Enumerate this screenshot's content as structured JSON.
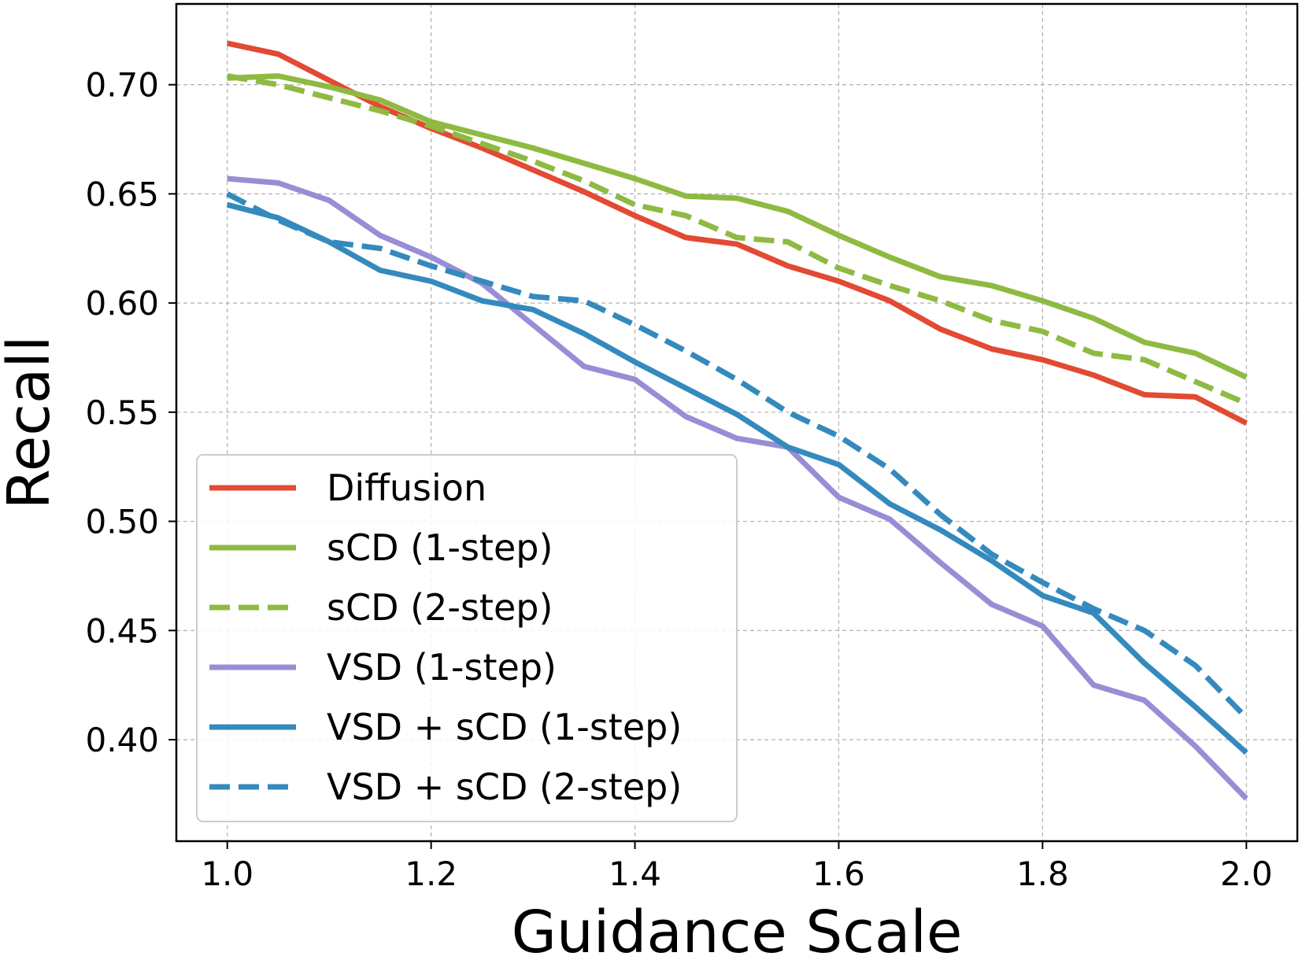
{
  "chart_data": {
    "type": "line",
    "title": "",
    "xlabel": "Guidance Scale",
    "ylabel": "Recall",
    "xlim": [
      0.95,
      2.05
    ],
    "ylim": [
      0.3535,
      0.737
    ],
    "xticks": [
      1.0,
      1.2,
      1.4,
      1.6,
      1.8,
      2.0
    ],
    "xtick_labels": [
      "1.0",
      "1.2",
      "1.4",
      "1.6",
      "1.8",
      "2.0"
    ],
    "yticks": [
      0.4,
      0.45,
      0.5,
      0.55,
      0.6,
      0.65,
      0.7
    ],
    "ytick_labels": [
      "0.40",
      "0.45",
      "0.50",
      "0.55",
      "0.60",
      "0.65",
      "0.70"
    ],
    "grid": true,
    "legend_position": "lower-left",
    "x": [
      1.0,
      1.05,
      1.1,
      1.15,
      1.2,
      1.25,
      1.3,
      1.35,
      1.4,
      1.45,
      1.5,
      1.55,
      1.6,
      1.65,
      1.7,
      1.75,
      1.8,
      1.85,
      1.9,
      1.95,
      2.0
    ],
    "series": [
      {
        "name": "Diffusion",
        "color": "#E24A33",
        "dash": "solid",
        "values": [
          0.719,
          0.714,
          0.702,
          0.69,
          0.68,
          0.671,
          0.661,
          0.651,
          0.64,
          0.63,
          0.627,
          0.617,
          0.61,
          0.601,
          0.588,
          0.579,
          0.574,
          0.567,
          0.558,
          0.557,
          0.545
        ]
      },
      {
        "name": "sCD (1-step)",
        "color": "#8EBA42",
        "dash": "solid",
        "values": [
          0.703,
          0.704,
          0.699,
          0.693,
          0.683,
          0.677,
          0.671,
          0.664,
          0.657,
          0.649,
          0.648,
          0.642,
          0.631,
          0.621,
          0.612,
          0.608,
          0.601,
          0.593,
          0.582,
          0.577,
          0.566
        ]
      },
      {
        "name": "sCD (2-step)",
        "color": "#8EBA42",
        "dash": "dashed",
        "values": [
          0.704,
          0.7,
          0.694,
          0.688,
          0.681,
          0.673,
          0.665,
          0.656,
          0.645,
          0.64,
          0.63,
          0.628,
          0.616,
          0.608,
          0.601,
          0.592,
          0.587,
          0.577,
          0.574,
          0.564,
          0.554
        ]
      },
      {
        "name": "VSD (1-step)",
        "color": "#988ED5",
        "dash": "solid",
        "values": [
          0.657,
          0.655,
          0.647,
          0.631,
          0.621,
          0.609,
          0.59,
          0.571,
          0.565,
          0.548,
          0.538,
          0.534,
          0.511,
          0.501,
          0.481,
          0.462,
          0.452,
          0.425,
          0.418,
          0.397,
          0.373
        ]
      },
      {
        "name": "VSD + sCD (1-step)",
        "color": "#348ABD",
        "dash": "solid",
        "values": [
          0.645,
          0.639,
          0.628,
          0.615,
          0.61,
          0.601,
          0.597,
          0.586,
          0.573,
          0.561,
          0.549,
          0.534,
          0.526,
          0.508,
          0.496,
          0.482,
          0.466,
          0.458,
          0.435,
          0.415,
          0.394
        ]
      },
      {
        "name": "VSD + sCD (2-step)",
        "color": "#348ABD",
        "dash": "dashed",
        "values": [
          0.65,
          0.638,
          0.628,
          0.625,
          0.617,
          0.61,
          0.603,
          0.601,
          0.59,
          0.578,
          0.565,
          0.55,
          0.539,
          0.524,
          0.503,
          0.485,
          0.472,
          0.46,
          0.45,
          0.434,
          0.41
        ]
      }
    ]
  }
}
